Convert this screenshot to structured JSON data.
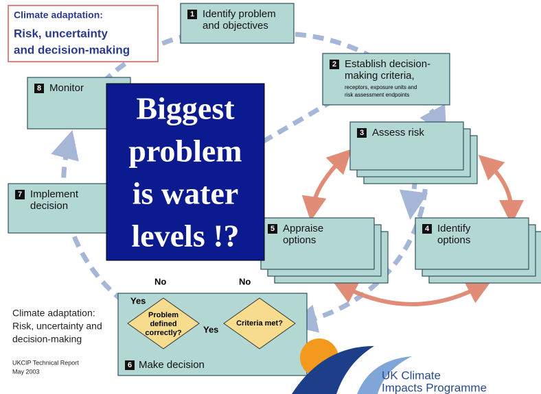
{
  "title": {
    "lines": [
      "Climate adaptation:",
      "Risk, uncertainty",
      "and decision-making"
    ]
  },
  "steps": [
    {
      "number": "1",
      "lines": [
        "Identify problem",
        "and objectives"
      ]
    },
    {
      "number": "2",
      "lines": [
        "Establish decision-",
        "making criteria,"
      ],
      "note": [
        "receptors, exposure units and",
        "risk assessment endpoints"
      ]
    },
    {
      "number": "3",
      "lines": [
        "Assess risk"
      ]
    },
    {
      "number": "4",
      "lines": [
        "Identify",
        "options"
      ]
    },
    {
      "number": "5",
      "lines": [
        "Appraise",
        "options"
      ]
    },
    {
      "number": "6",
      "lines": [
        "Make decision"
      ]
    },
    {
      "number": "7",
      "lines": [
        "Implement",
        "decision"
      ]
    },
    {
      "number": "8",
      "lines": [
        "Monitor"
      ]
    }
  ],
  "overlay": {
    "lines": [
      "Biggest",
      "problem",
      "is water",
      "levels !?"
    ]
  },
  "decisions": [
    {
      "lines": [
        "Problem",
        "defined",
        "correctly?"
      ]
    },
    {
      "lines": [
        "Criteria met?"
      ]
    }
  ],
  "labels": {
    "yes_top": "Yes",
    "yes_middle": "Yes",
    "no_left": "No",
    "no_right": "No"
  },
  "caption": {
    "lines": [
      "Climate adaptation:",
      "Risk, uncertainty and",
      "decision-making"
    ],
    "report": [
      "UKCIP Technical Report",
      "May 2003"
    ]
  },
  "logo": {
    "lines": [
      "UK Climate",
      "Impacts Programme"
    ]
  }
}
